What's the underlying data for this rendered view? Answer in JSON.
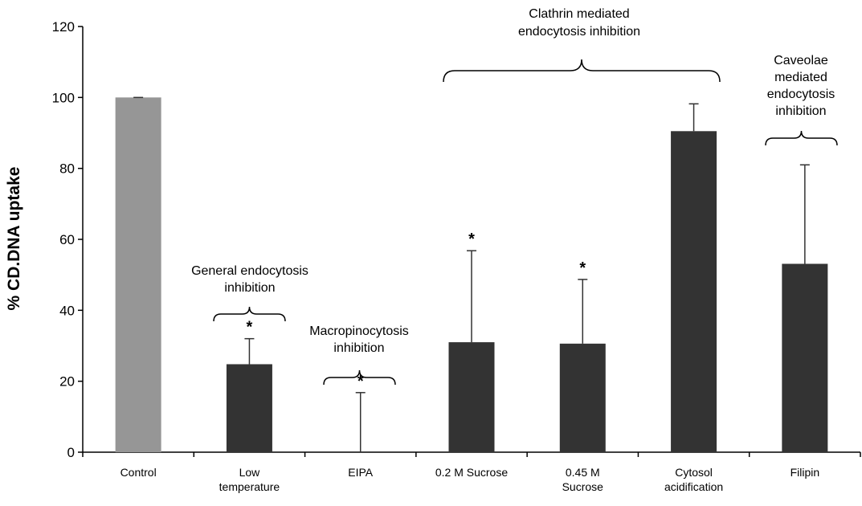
{
  "chart_data": {
    "type": "bar",
    "title": "",
    "xlabel": "",
    "ylabel": "% CD.DNA uptake",
    "ylim": [
      0,
      120
    ],
    "yticks": [
      0,
      20,
      40,
      60,
      80,
      100,
      120
    ],
    "grid": false,
    "legend": "none",
    "categories": [
      "Control",
      "Low temperature",
      "EIPA",
      "0.2 M Sucrose",
      "0.45 M Sucrose",
      "Cytosol acidification",
      "Filipin"
    ],
    "category_label_lines": [
      [
        "Control"
      ],
      [
        "Low",
        "temperature"
      ],
      [
        "EIPA"
      ],
      [
        "0.2 M  Sucrose"
      ],
      [
        "0.45 M",
        "Sucrose"
      ],
      [
        "Cytosol",
        "acidification"
      ],
      [
        "Filipin"
      ]
    ],
    "values": [
      100,
      24.8,
      0,
      31,
      30.6,
      90.5,
      53.1
    ],
    "error_upper": [
      100,
      32,
      16.8,
      56.8,
      48.7,
      98.2,
      81
    ],
    "significant": [
      false,
      true,
      true,
      true,
      true,
      false,
      false
    ],
    "significance_marker": "*",
    "bar_colors": [
      "#969696",
      "#333333",
      "#333333",
      "#333333",
      "#333333",
      "#333333",
      "#333333"
    ],
    "annotations": [
      {
        "lines": [
          "General endocytosis",
          "inhibition"
        ],
        "spans": [
          1
        ]
      },
      {
        "lines": [
          "Macropinocytosis",
          "inhibition"
        ],
        "spans": [
          2
        ]
      },
      {
        "lines": [
          "Clathrin mediated",
          "endocytosis inhibition"
        ],
        "spans": [
          3,
          4,
          5
        ]
      },
      {
        "lines": [
          "Caveolae",
          "mediated",
          "endocytosis",
          "inhibition"
        ],
        "spans": [
          6
        ]
      }
    ]
  }
}
